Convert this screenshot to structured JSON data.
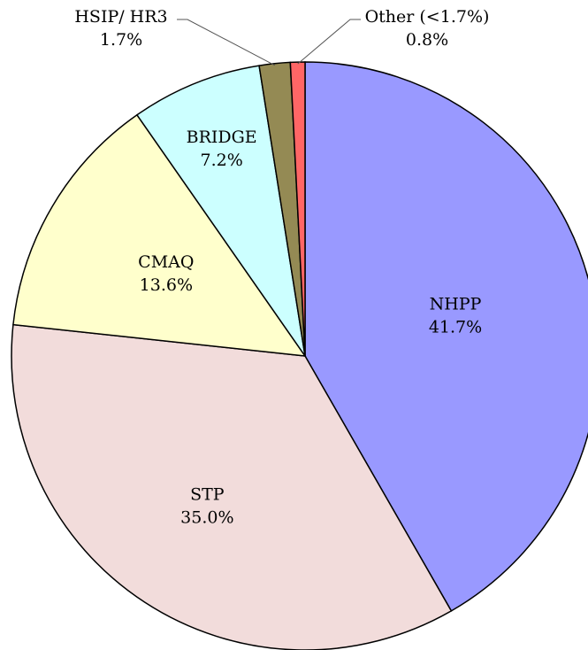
{
  "chart_data": {
    "type": "pie",
    "categories": [
      "NHPP",
      "STP",
      "CMAQ",
      "BRIDGE",
      "HSIP/ HR3",
      "Other (<1.7%)"
    ],
    "values": [
      41.7,
      35.0,
      13.6,
      7.2,
      1.7,
      0.8
    ],
    "value_labels": [
      "41.7%",
      "35.0%",
      "13.6%",
      "7.2%",
      "1.7%",
      "0.8%"
    ],
    "colors": [
      "#9999ff",
      "#f2dcdb",
      "#ffffcc",
      "#ccffff",
      "#948a54",
      "#ff6666"
    ]
  }
}
